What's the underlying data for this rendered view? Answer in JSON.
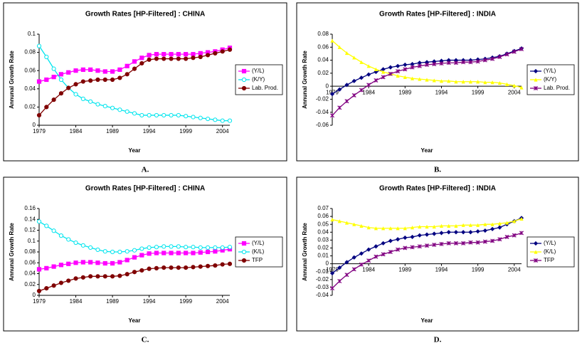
{
  "chart_data": [
    {
      "type": "line",
      "label": "A.",
      "title": "Growth Rates  [HP-Filtered] : CHINA",
      "xlabel": "Year",
      "ylabel": "Annunal Growth Rate",
      "x": [
        1979,
        1980,
        1981,
        1982,
        1983,
        1984,
        1985,
        1986,
        1987,
        1988,
        1989,
        1990,
        1991,
        1992,
        1993,
        1994,
        1995,
        1996,
        1997,
        1998,
        1999,
        2000,
        2001,
        2002,
        2003,
        2004,
        2005
      ],
      "xlim": [
        1979,
        2005
      ],
      "xticks": [
        1979,
        1984,
        1989,
        1994,
        1999,
        2004
      ],
      "ylim": [
        0,
        0.1
      ],
      "yticks": [
        0,
        0.02,
        0.04,
        0.06,
        0.08,
        0.1
      ],
      "xaxis_at_zero": false,
      "legend": "right",
      "series": [
        {
          "name": "(Y/L)",
          "color": "#ff00ff",
          "marker": "square",
          "values": [
            0.048,
            0.05,
            0.053,
            0.056,
            0.058,
            0.06,
            0.061,
            0.061,
            0.06,
            0.059,
            0.059,
            0.061,
            0.065,
            0.07,
            0.074,
            0.077,
            0.078,
            0.078,
            0.078,
            0.078,
            0.078,
            0.078,
            0.079,
            0.08,
            0.081,
            0.083,
            0.085
          ]
        },
        {
          "name": "(K/Y)",
          "color": "#00e5ee",
          "marker": "circle",
          "values": [
            0.087,
            0.075,
            0.062,
            0.05,
            0.041,
            0.034,
            0.029,
            0.026,
            0.023,
            0.021,
            0.019,
            0.017,
            0.015,
            0.013,
            0.011,
            0.011,
            0.011,
            0.011,
            0.011,
            0.011,
            0.01,
            0.009,
            0.008,
            0.007,
            0.006,
            0.005,
            0.005
          ]
        },
        {
          "name": "Lab. Prod.",
          "color": "#800000",
          "marker": "circlefill",
          "values": [
            0.011,
            0.02,
            0.028,
            0.035,
            0.041,
            0.045,
            0.048,
            0.049,
            0.05,
            0.05,
            0.05,
            0.052,
            0.056,
            0.062,
            0.068,
            0.072,
            0.073,
            0.073,
            0.073,
            0.073,
            0.073,
            0.074,
            0.075,
            0.077,
            0.079,
            0.081,
            0.083
          ]
        }
      ]
    },
    {
      "type": "line",
      "label": "B.",
      "title": "Growth Rates  [HP-Filtered] : INDIA",
      "xlabel": "Year",
      "ylabel": "Annunal Growth Rate",
      "x": [
        1979,
        1980,
        1981,
        1982,
        1983,
        1984,
        1985,
        1986,
        1987,
        1988,
        1989,
        1990,
        1991,
        1992,
        1993,
        1994,
        1995,
        1996,
        1997,
        1998,
        1999,
        2000,
        2001,
        2002,
        2003,
        2004,
        2005
      ],
      "xlim": [
        1979,
        2005
      ],
      "xticks": [
        1979,
        1984,
        1989,
        1994,
        1999,
        2004
      ],
      "ylim": [
        -0.06,
        0.08
      ],
      "yticks": [
        -0.06,
        -0.04,
        -0.02,
        0,
        0.02,
        0.04,
        0.06,
        0.08
      ],
      "xaxis_at_zero": true,
      "legend": "right",
      "series": [
        {
          "name": "(Y/L)",
          "color": "#000080",
          "marker": "diamond",
          "values": [
            -0.012,
            -0.005,
            0.002,
            0.008,
            0.013,
            0.018,
            0.022,
            0.026,
            0.029,
            0.031,
            0.033,
            0.034,
            0.036,
            0.037,
            0.038,
            0.039,
            0.04,
            0.04,
            0.04,
            0.04,
            0.041,
            0.042,
            0.044,
            0.046,
            0.05,
            0.054,
            0.058
          ]
        },
        {
          "name": "(K/Y)",
          "color": "#ffff00",
          "marker": "triangle",
          "values": [
            0.07,
            0.06,
            0.051,
            0.044,
            0.037,
            0.031,
            0.026,
            0.022,
            0.019,
            0.016,
            0.014,
            0.012,
            0.011,
            0.01,
            0.009,
            0.008,
            0.008,
            0.007,
            0.007,
            0.007,
            0.007,
            0.006,
            0.006,
            0.005,
            0.003,
            0.001,
            -0.002
          ]
        },
        {
          "name": "Lab. Prod.",
          "color": "#800080",
          "marker": "x",
          "values": [
            -0.045,
            -0.033,
            -0.023,
            -0.014,
            -0.006,
            0.002,
            0.009,
            0.014,
            0.019,
            0.023,
            0.026,
            0.029,
            0.031,
            0.033,
            0.034,
            0.035,
            0.036,
            0.036,
            0.037,
            0.037,
            0.038,
            0.04,
            0.042,
            0.045,
            0.049,
            0.053,
            0.057
          ]
        }
      ]
    },
    {
      "type": "line",
      "label": "C.",
      "title": "Growth Rates  [HP-Filtered] : CHINA",
      "xlabel": "Year",
      "ylabel": "Annunal Growth Rate",
      "x": [
        1979,
        1980,
        1981,
        1982,
        1983,
        1984,
        1985,
        1986,
        1987,
        1988,
        1989,
        1990,
        1991,
        1992,
        1993,
        1994,
        1995,
        1996,
        1997,
        1998,
        1999,
        2000,
        2001,
        2002,
        2003,
        2004,
        2005
      ],
      "xlim": [
        1979,
        2005
      ],
      "xticks": [
        1979,
        1984,
        1989,
        1994,
        1999,
        2004
      ],
      "ylim": [
        0,
        0.16
      ],
      "yticks": [
        0,
        0.02,
        0.04,
        0.06,
        0.08,
        0.1,
        0.12,
        0.14,
        0.16
      ],
      "xaxis_at_zero": false,
      "legend": "right",
      "series": [
        {
          "name": "(Y/L)",
          "color": "#ff00ff",
          "marker": "square",
          "values": [
            0.048,
            0.05,
            0.053,
            0.056,
            0.058,
            0.06,
            0.061,
            0.061,
            0.06,
            0.059,
            0.059,
            0.061,
            0.065,
            0.07,
            0.074,
            0.077,
            0.078,
            0.078,
            0.078,
            0.078,
            0.078,
            0.078,
            0.079,
            0.08,
            0.081,
            0.083,
            0.085
          ]
        },
        {
          "name": "(K/L)",
          "color": "#00e5ee",
          "marker": "circle",
          "values": [
            0.136,
            0.128,
            0.119,
            0.11,
            0.103,
            0.097,
            0.092,
            0.088,
            0.084,
            0.081,
            0.08,
            0.08,
            0.081,
            0.083,
            0.086,
            0.088,
            0.089,
            0.09,
            0.09,
            0.09,
            0.089,
            0.089,
            0.088,
            0.088,
            0.088,
            0.088,
            0.089
          ]
        },
        {
          "name": "TFP",
          "color": "#800000",
          "marker": "circlefill",
          "values": [
            0.008,
            0.013,
            0.018,
            0.023,
            0.027,
            0.031,
            0.033,
            0.035,
            0.035,
            0.035,
            0.035,
            0.036,
            0.039,
            0.043,
            0.046,
            0.049,
            0.05,
            0.051,
            0.051,
            0.051,
            0.051,
            0.052,
            0.053,
            0.054,
            0.055,
            0.057,
            0.058
          ]
        }
      ]
    },
    {
      "type": "line",
      "label": "D.",
      "title": "Growth Rates  [HP-Filtered] : INDIA",
      "xlabel": "Year",
      "ylabel": "Annunal Growth Rate",
      "x": [
        1979,
        1980,
        1981,
        1982,
        1983,
        1984,
        1985,
        1986,
        1987,
        1988,
        1989,
        1990,
        1991,
        1992,
        1993,
        1994,
        1995,
        1996,
        1997,
        1998,
        1999,
        2000,
        2001,
        2002,
        2003,
        2004,
        2005
      ],
      "xlim": [
        1979,
        2005
      ],
      "xticks": [
        1979,
        1984,
        1989,
        1994,
        1999,
        2004
      ],
      "ylim": [
        -0.04,
        0.07
      ],
      "yticks": [
        -0.04,
        -0.03,
        -0.02,
        -0.01,
        0,
        0.01,
        0.02,
        0.03,
        0.04,
        0.05,
        0.06,
        0.07
      ],
      "xaxis_at_zero": true,
      "legend": "right",
      "series": [
        {
          "name": "(Y/L)",
          "color": "#000080",
          "marker": "diamond",
          "values": [
            -0.012,
            -0.005,
            0.002,
            0.008,
            0.013,
            0.018,
            0.022,
            0.026,
            0.029,
            0.031,
            0.033,
            0.034,
            0.036,
            0.037,
            0.038,
            0.039,
            0.04,
            0.04,
            0.04,
            0.04,
            0.041,
            0.042,
            0.044,
            0.046,
            0.05,
            0.054,
            0.058
          ]
        },
        {
          "name": "(K/L)",
          "color": "#ffff00",
          "marker": "triangle",
          "values": [
            0.056,
            0.054,
            0.052,
            0.05,
            0.048,
            0.046,
            0.045,
            0.045,
            0.045,
            0.045,
            0.045,
            0.046,
            0.047,
            0.047,
            0.047,
            0.048,
            0.048,
            0.048,
            0.049,
            0.049,
            0.049,
            0.05,
            0.05,
            0.051,
            0.052,
            0.054,
            0.057
          ]
        },
        {
          "name": "TFP",
          "color": "#800080",
          "marker": "x",
          "values": [
            -0.031,
            -0.022,
            -0.014,
            -0.007,
            -0.001,
            0.004,
            0.009,
            0.012,
            0.015,
            0.018,
            0.02,
            0.021,
            0.022,
            0.023,
            0.024,
            0.025,
            0.026,
            0.026,
            0.026,
            0.027,
            0.027,
            0.028,
            0.029,
            0.031,
            0.034,
            0.036,
            0.039
          ]
        }
      ]
    }
  ]
}
